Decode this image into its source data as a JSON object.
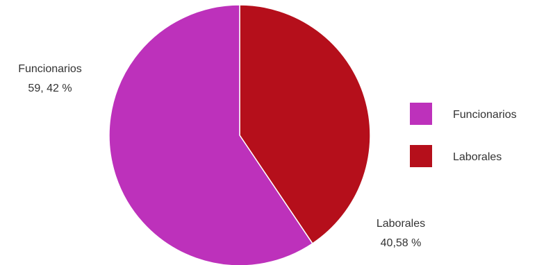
{
  "chart_data": {
    "type": "pie",
    "title": "",
    "slices": [
      {
        "name": "Laborales",
        "value": 40.58,
        "display": "40,58 %",
        "color": "#b50f1b"
      },
      {
        "name": "Funcionarios",
        "value": 59.42,
        "display": "59, 42 %",
        "color": "#bd31bb"
      }
    ],
    "legend": {
      "placement": "right",
      "items": [
        "Funcionarios",
        "Laborales"
      ]
    }
  }
}
